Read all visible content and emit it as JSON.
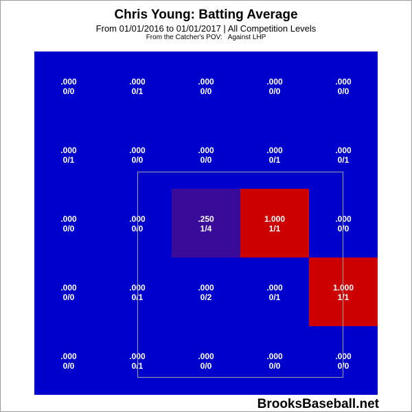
{
  "chart_data": {
    "type": "heatmap",
    "title": "Chris Young: Batting Average",
    "subtitle": "From 01/01/2016 to 01/01/2017 | All Competition Levels",
    "perspective": "From the Catcher's POV:",
    "split": "Against LHP",
    "watermark": "BrooksBaseball.net",
    "rows": 5,
    "cols": 5,
    "strike_zone": "inner 3x3 cells outlined",
    "colors": {
      "zero": "#0000cc",
      "mid": "#3a0a99",
      "high": "#cc0000",
      "outline": "#a0a0a0"
    },
    "cells": [
      [
        {
          "avg": ".000",
          "hits_ab": "0/0",
          "value": 0.0
        },
        {
          "avg": ".000",
          "hits_ab": "0/1",
          "value": 0.0
        },
        {
          "avg": ".000",
          "hits_ab": "0/0",
          "value": 0.0
        },
        {
          "avg": ".000",
          "hits_ab": "0/0",
          "value": 0.0
        },
        {
          "avg": ".000",
          "hits_ab": "0/0",
          "value": 0.0
        }
      ],
      [
        {
          "avg": ".000",
          "hits_ab": "0/1",
          "value": 0.0
        },
        {
          "avg": ".000",
          "hits_ab": "0/0",
          "value": 0.0
        },
        {
          "avg": ".000",
          "hits_ab": "0/0",
          "value": 0.0
        },
        {
          "avg": ".000",
          "hits_ab": "0/1",
          "value": 0.0
        },
        {
          "avg": ".000",
          "hits_ab": "0/1",
          "value": 0.0
        }
      ],
      [
        {
          "avg": ".000",
          "hits_ab": "0/0",
          "value": 0.0
        },
        {
          "avg": ".000",
          "hits_ab": "0/0",
          "value": 0.0
        },
        {
          "avg": ".250",
          "hits_ab": "1/4",
          "value": 0.25
        },
        {
          "avg": "1.000",
          "hits_ab": "1/1",
          "value": 1.0
        },
        {
          "avg": ".000",
          "hits_ab": "0/0",
          "value": 0.0
        }
      ],
      [
        {
          "avg": ".000",
          "hits_ab": "0/0",
          "value": 0.0
        },
        {
          "avg": ".000",
          "hits_ab": "0/1",
          "value": 0.0
        },
        {
          "avg": ".000",
          "hits_ab": "0/2",
          "value": 0.0
        },
        {
          "avg": ".000",
          "hits_ab": "0/1",
          "value": 0.0
        },
        {
          "avg": "1.000",
          "hits_ab": "1/1",
          "value": 1.0
        }
      ],
      [
        {
          "avg": ".000",
          "hits_ab": "0/0",
          "value": 0.0
        },
        {
          "avg": ".000",
          "hits_ab": "0/1",
          "value": 0.0
        },
        {
          "avg": ".000",
          "hits_ab": "0/0",
          "value": 0.0
        },
        {
          "avg": ".000",
          "hits_ab": "0/0",
          "value": 0.0
        },
        {
          "avg": ".000",
          "hits_ab": "0/0",
          "value": 0.0
        }
      ]
    ]
  }
}
